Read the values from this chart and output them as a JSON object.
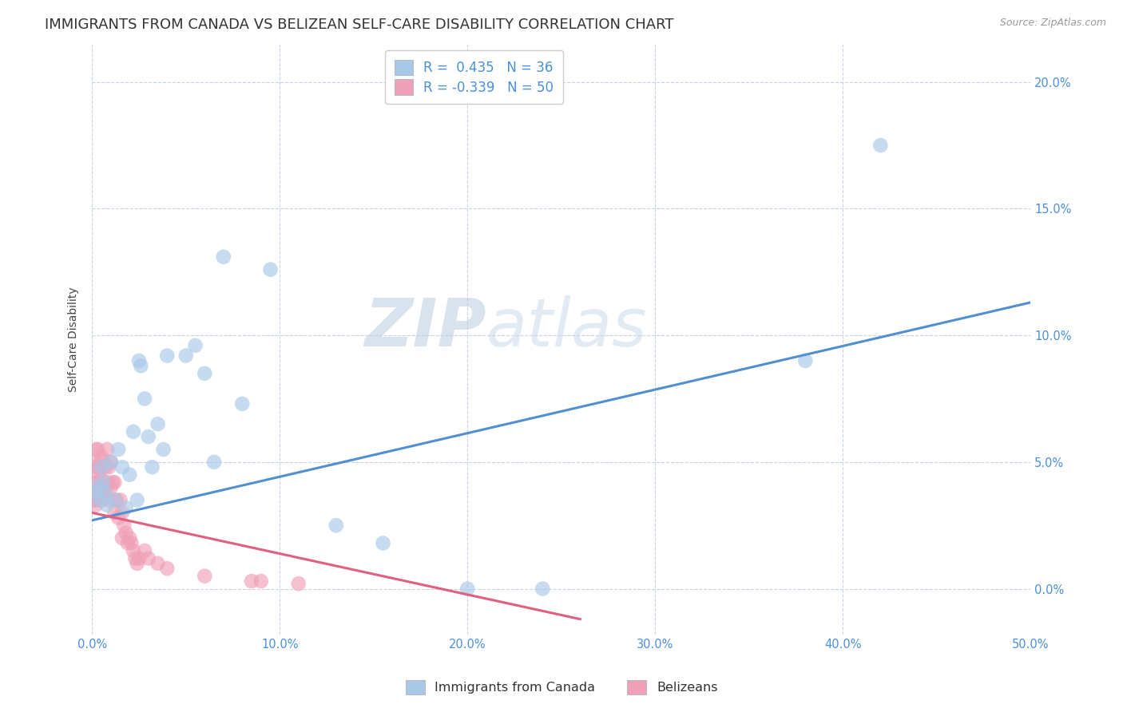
{
  "title": "IMMIGRANTS FROM CANADA VS BELIZEAN SELF-CARE DISABILITY CORRELATION CHART",
  "source": "Source: ZipAtlas.com",
  "ylabel": "Self-Care Disability",
  "xlim": [
    0.0,
    0.5
  ],
  "ylim": [
    -0.018,
    0.215
  ],
  "xticks": [
    0.0,
    0.1,
    0.2,
    0.3,
    0.4,
    0.5
  ],
  "yticks": [
    0.0,
    0.05,
    0.1,
    0.15,
    0.2
  ],
  "xticklabels": [
    "0.0%",
    "10.0%",
    "20.0%",
    "30.0%",
    "40.0%",
    "50.0%"
  ],
  "yticklabels": [
    "0.0%",
    "5.0%",
    "10.0%",
    "15.0%",
    "20.0%"
  ],
  "canada_R": 0.435,
  "canada_N": 36,
  "belize_R": -0.339,
  "belize_N": 50,
  "canada_color": "#a8c8e8",
  "belize_color": "#f0a0b8",
  "canada_line_color": "#5090d0",
  "belize_line_color": "#e06080",
  "watermark_zip": "ZIP",
  "watermark_atlas": "atlas",
  "background_color": "#ffffff",
  "grid_color": "#c8d4e4",
  "title_fontsize": 13,
  "axis_label_fontsize": 10,
  "tick_fontsize": 10.5,
  "tick_color": "#4a90d9",
  "legend_fontsize": 12,
  "canada_line_x": [
    0.0,
    0.5
  ],
  "canada_line_y": [
    0.027,
    0.113
  ],
  "belize_line_x": [
    0.0,
    0.26
  ],
  "belize_line_y": [
    0.03,
    -0.012
  ],
  "canada_x": [
    0.002,
    0.003,
    0.004,
    0.005,
    0.006,
    0.007,
    0.008,
    0.01,
    0.012,
    0.014,
    0.016,
    0.018,
    0.02,
    0.022,
    0.024,
    0.025,
    0.026,
    0.028,
    0.03,
    0.032,
    0.035,
    0.038,
    0.04,
    0.05,
    0.055,
    0.06,
    0.065,
    0.07,
    0.08,
    0.095,
    0.13,
    0.155,
    0.2,
    0.24,
    0.38,
    0.42
  ],
  "canada_y": [
    0.038,
    0.04,
    0.035,
    0.048,
    0.042,
    0.038,
    0.033,
    0.05,
    0.035,
    0.055,
    0.048,
    0.032,
    0.045,
    0.062,
    0.035,
    0.09,
    0.088,
    0.075,
    0.06,
    0.048,
    0.065,
    0.055,
    0.092,
    0.092,
    0.096,
    0.085,
    0.05,
    0.131,
    0.073,
    0.126,
    0.025,
    0.018,
    0.0,
    0.0,
    0.09,
    0.175
  ],
  "belize_x": [
    0.001,
    0.001,
    0.001,
    0.002,
    0.002,
    0.002,
    0.002,
    0.003,
    0.003,
    0.003,
    0.004,
    0.004,
    0.005,
    0.005,
    0.005,
    0.006,
    0.006,
    0.007,
    0.007,
    0.008,
    0.008,
    0.009,
    0.009,
    0.01,
    0.01,
    0.011,
    0.012,
    0.012,
    0.013,
    0.014,
    0.015,
    0.016,
    0.016,
    0.017,
    0.018,
    0.019,
    0.02,
    0.021,
    0.022,
    0.023,
    0.024,
    0.025,
    0.028,
    0.03,
    0.035,
    0.04,
    0.06,
    0.085,
    0.09,
    0.11
  ],
  "belize_y": [
    0.05,
    0.042,
    0.035,
    0.055,
    0.048,
    0.04,
    0.033,
    0.055,
    0.045,
    0.035,
    0.048,
    0.038,
    0.052,
    0.043,
    0.035,
    0.05,
    0.04,
    0.048,
    0.038,
    0.055,
    0.042,
    0.048,
    0.035,
    0.05,
    0.04,
    0.042,
    0.042,
    0.03,
    0.035,
    0.028,
    0.035,
    0.03,
    0.02,
    0.025,
    0.022,
    0.018,
    0.02,
    0.018,
    0.015,
    0.012,
    0.01,
    0.012,
    0.015,
    0.012,
    0.01,
    0.008,
    0.005,
    0.003,
    0.003,
    0.002
  ]
}
